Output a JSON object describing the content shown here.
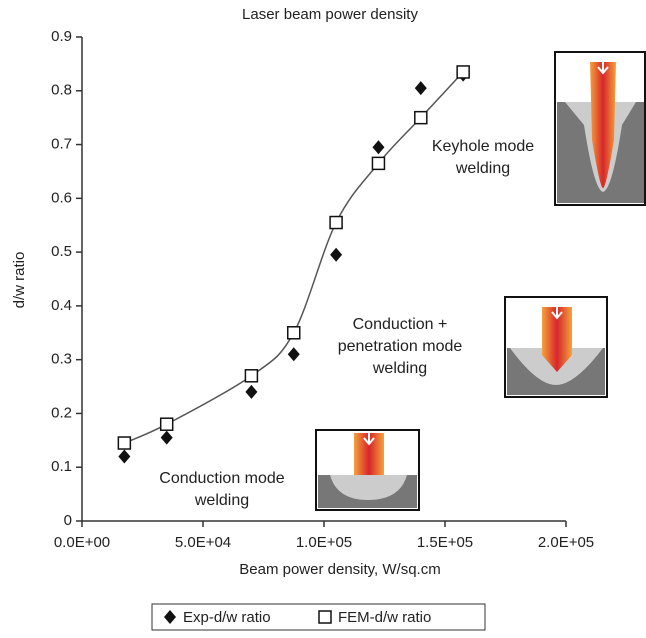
{
  "chart_data": {
    "type": "scatter",
    "title": "Laser beam power density",
    "x_label": "Beam power density, W/sq.cm",
    "y_label": "d/w ratio",
    "xlim": [
      0,
      200000
    ],
    "ylim": [
      0,
      0.9
    ],
    "xticks": [
      {
        "value": 0,
        "label": "0.0E+00"
      },
      {
        "value": 50000,
        "label": "5.0E+04"
      },
      {
        "value": 100000,
        "label": "1.0E+05"
      },
      {
        "value": 150000,
        "label": "1.5E+05"
      },
      {
        "value": 200000,
        "label": "2.0E+05"
      }
    ],
    "yticks": [
      0,
      0.1,
      0.2,
      0.3,
      0.4,
      0.5,
      0.6,
      0.7,
      0.8,
      0.9
    ],
    "series": [
      {
        "name": "Exp-d/w ratio",
        "color": "#111111",
        "marker": "diamond",
        "x": [
          17500,
          35000,
          70000,
          87500,
          105000,
          122500,
          140000,
          157500
        ],
        "values": [
          0.12,
          0.155,
          0.24,
          0.31,
          0.495,
          0.695,
          0.805,
          0.83
        ]
      },
      {
        "name": "FEM-d/w ratio",
        "color": "#111111",
        "marker": "square",
        "smooth_line": true,
        "x": [
          17500,
          35000,
          70000,
          87500,
          105000,
          122500,
          140000,
          157500
        ],
        "values": [
          0.145,
          0.18,
          0.27,
          0.35,
          0.555,
          0.665,
          0.75,
          0.835
        ]
      }
    ],
    "annotations": [
      {
        "lines": [
          "Keyhole mode",
          "welding"
        ]
      },
      {
        "lines": [
          "Conduction +",
          "penetration mode",
          "welding"
        ]
      },
      {
        "lines": [
          "Conduction mode",
          "welding"
        ]
      }
    ],
    "legend": "bottom"
  }
}
